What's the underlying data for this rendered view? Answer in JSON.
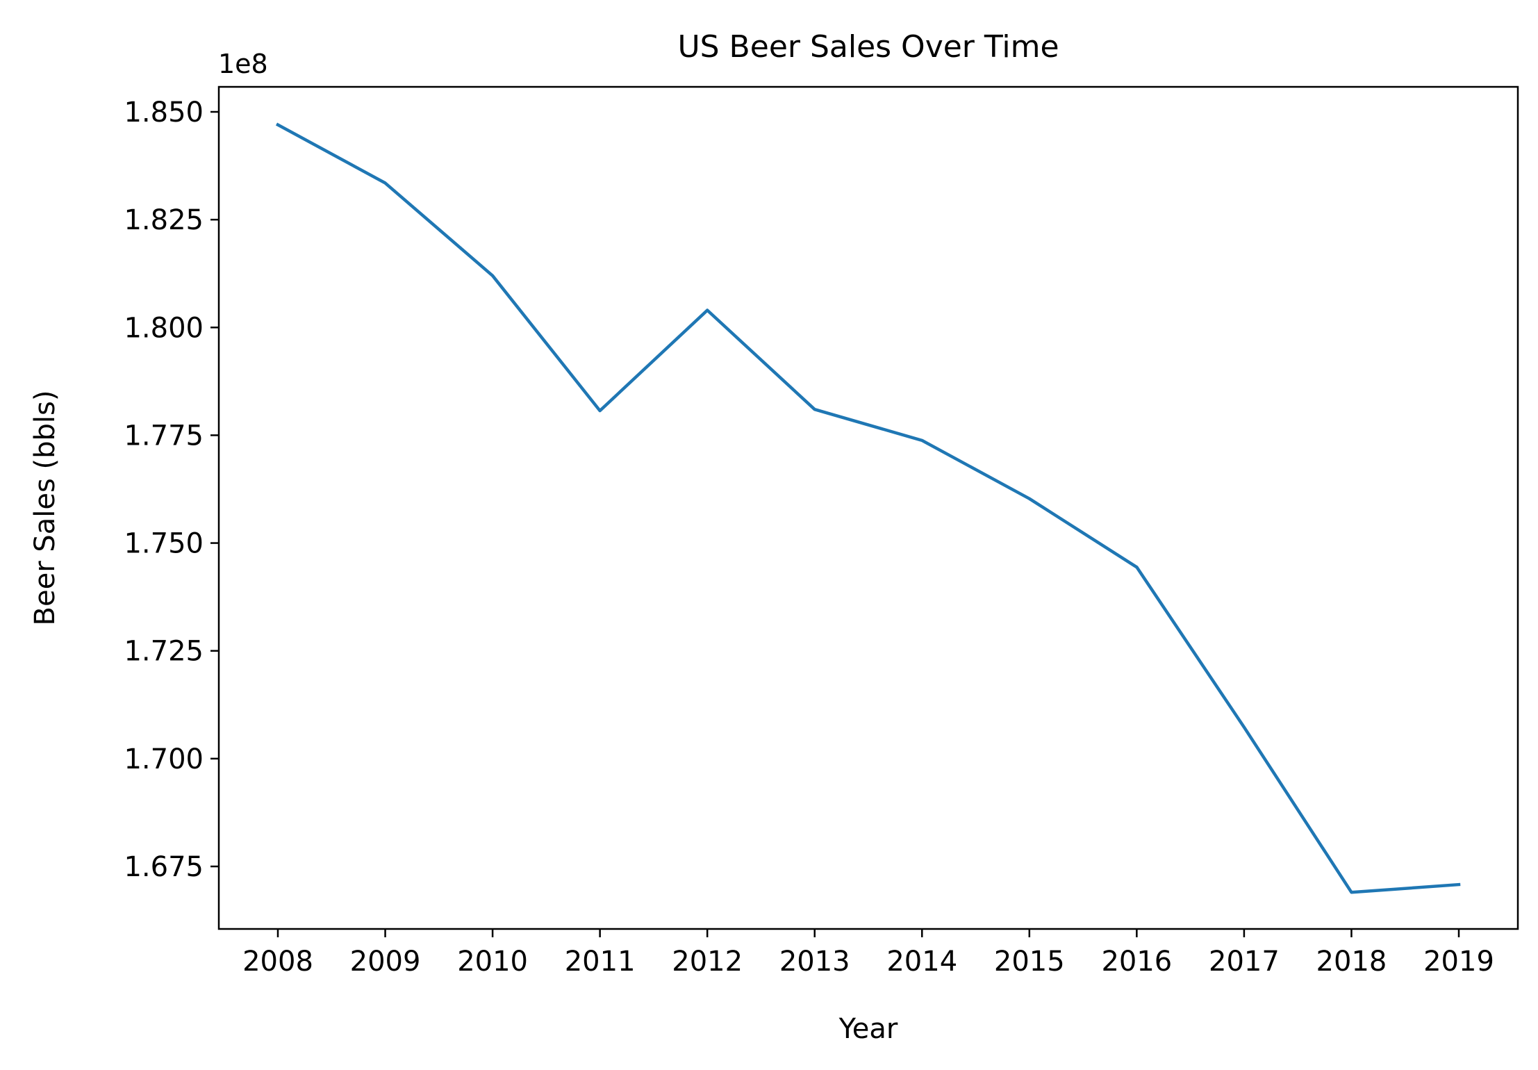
{
  "chart_data": {
    "type": "line",
    "title": "US Beer Sales Over Time",
    "xlabel": "Year",
    "ylabel": "Beer Sales (bbls)",
    "offset_label": "1e8",
    "x": [
      2008,
      2009,
      2010,
      2011,
      2012,
      2013,
      2014,
      2015,
      2016,
      2017,
      2018,
      2019
    ],
    "series": [
      {
        "values": [
          184700000,
          183350000,
          181200000,
          178070000,
          180400000,
          178100000,
          177380000,
          176030000,
          174440000,
          170730000,
          166900000,
          167080000
        ],
        "color": "#1f77b4"
      }
    ],
    "yticks": [
      1.675,
      1.7,
      1.725,
      1.75,
      1.775,
      1.8,
      1.825,
      1.85
    ],
    "ytick_labels": [
      "1.675",
      "1.700",
      "1.725",
      "1.750",
      "1.775",
      "1.800",
      "1.825",
      "1.850"
    ],
    "ytick_scale": 100000000,
    "xtick_labels": [
      "2008",
      "2009",
      "2010",
      "2011",
      "2012",
      "2013",
      "2014",
      "2015",
      "2016",
      "2017",
      "2018",
      "2019"
    ],
    "ylim": [
      166050000,
      185580000
    ],
    "xlim": [
      2007.45,
      2019.55
    ],
    "grid": false,
    "legend": "none"
  }
}
